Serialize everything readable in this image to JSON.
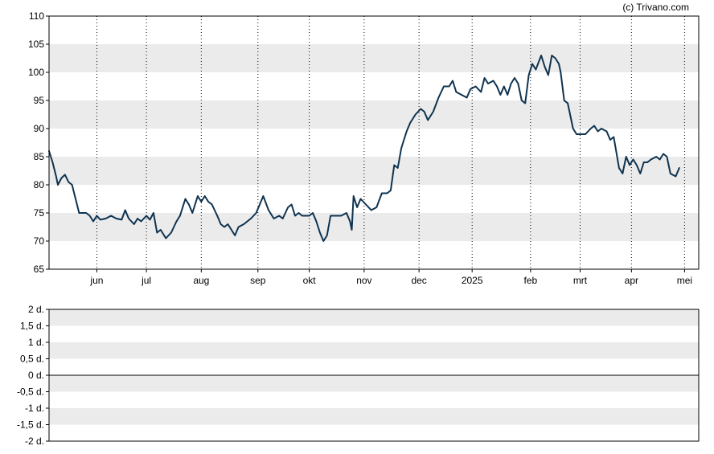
{
  "credit": "(c) Trivano.com",
  "colors": {
    "line": "#0e3350",
    "band": "#ebebeb",
    "frame": "#000000",
    "grid": "#000000"
  },
  "chart_data": [
    {
      "type": "line",
      "title": "",
      "xlabel": "",
      "ylabel": "",
      "ylim": [
        65,
        110
      ],
      "yticks": [
        "65",
        "70",
        "75",
        "80",
        "85",
        "90",
        "95",
        "100",
        "105",
        "110"
      ],
      "xticks": [
        "jun",
        "jul",
        "aug",
        "sep",
        "okt",
        "nov",
        "dec",
        "2025",
        "feb",
        "mrt",
        "apr",
        "mei"
      ],
      "x_range": [
        "2024-05-07",
        "2025-05-09"
      ],
      "xtick_dates": [
        "2024-06-03",
        "2024-07-01",
        "2024-08-01",
        "2024-09-02",
        "2024-10-01",
        "2024-11-01",
        "2024-12-02",
        "2025-01-01",
        "2025-02-03",
        "2025-03-03",
        "2025-04-01",
        "2025-05-01"
      ],
      "grid": "vertical dotted at month ticks; alternating horizontal bands",
      "series": [
        {
          "points": [
            [
              "2024-05-07",
              86.0
            ],
            [
              "2024-05-09",
              84.0
            ],
            [
              "2024-05-11",
              81.5
            ],
            [
              "2024-05-12",
              80.0
            ],
            [
              "2024-05-14",
              81.2
            ],
            [
              "2024-05-16",
              81.8
            ],
            [
              "2024-05-18",
              80.5
            ],
            [
              "2024-05-20",
              80.0
            ],
            [
              "2024-05-22",
              77.5
            ],
            [
              "2024-05-24",
              75.0
            ],
            [
              "2024-05-28",
              75.0
            ],
            [
              "2024-05-30",
              74.5
            ],
            [
              "2024-06-01",
              73.5
            ],
            [
              "2024-06-03",
              74.5
            ],
            [
              "2024-06-05",
              73.8
            ],
            [
              "2024-06-08",
              74.0
            ],
            [
              "2024-06-11",
              74.5
            ],
            [
              "2024-06-14",
              74.0
            ],
            [
              "2024-06-17",
              73.8
            ],
            [
              "2024-06-19",
              75.5
            ],
            [
              "2024-06-21",
              74.0
            ],
            [
              "2024-06-24",
              73.0
            ],
            [
              "2024-06-26",
              74.0
            ],
            [
              "2024-06-28",
              73.5
            ],
            [
              "2024-07-01",
              74.5
            ],
            [
              "2024-07-03",
              73.8
            ],
            [
              "2024-07-05",
              75.0
            ],
            [
              "2024-07-07",
              71.5
            ],
            [
              "2024-07-09",
              72.0
            ],
            [
              "2024-07-12",
              70.5
            ],
            [
              "2024-07-15",
              71.5
            ],
            [
              "2024-07-18",
              73.5
            ],
            [
              "2024-07-20",
              74.5
            ],
            [
              "2024-07-23",
              77.5
            ],
            [
              "2024-07-25",
              76.5
            ],
            [
              "2024-07-27",
              75.0
            ],
            [
              "2024-07-30",
              78.0
            ],
            [
              "2024-08-01",
              77.0
            ],
            [
              "2024-08-03",
              78.0
            ],
            [
              "2024-08-05",
              77.0
            ],
            [
              "2024-08-07",
              76.5
            ],
            [
              "2024-08-10",
              74.5
            ],
            [
              "2024-08-12",
              73.0
            ],
            [
              "2024-08-14",
              72.5
            ],
            [
              "2024-08-16",
              73.0
            ],
            [
              "2024-08-18",
              72.0
            ],
            [
              "2024-08-20",
              71.0
            ],
            [
              "2024-08-22",
              72.5
            ],
            [
              "2024-08-25",
              73.0
            ],
            [
              "2024-08-27",
              73.5
            ],
            [
              "2024-08-29",
              74.0
            ],
            [
              "2024-09-01",
              75.0
            ],
            [
              "2024-09-03",
              76.5
            ],
            [
              "2024-09-05",
              78.0
            ],
            [
              "2024-09-08",
              75.5
            ],
            [
              "2024-09-11",
              74.0
            ],
            [
              "2024-09-14",
              74.5
            ],
            [
              "2024-09-16",
              74.0
            ],
            [
              "2024-09-19",
              76.0
            ],
            [
              "2024-09-21",
              76.5
            ],
            [
              "2024-09-23",
              74.5
            ],
            [
              "2024-09-25",
              75.0
            ],
            [
              "2024-09-27",
              74.5
            ],
            [
              "2024-10-01",
              74.5
            ],
            [
              "2024-10-03",
              75.0
            ],
            [
              "2024-10-05",
              73.5
            ],
            [
              "2024-10-07",
              71.5
            ],
            [
              "2024-10-09",
              70.0
            ],
            [
              "2024-10-11",
              71.0
            ],
            [
              "2024-10-13",
              74.5
            ],
            [
              "2024-10-16",
              74.5
            ],
            [
              "2024-10-19",
              74.5
            ],
            [
              "2024-10-22",
              75.0
            ],
            [
              "2024-10-24",
              73.5
            ],
            [
              "2024-10-25",
              72.0
            ],
            [
              "2024-10-26",
              78.0
            ],
            [
              "2024-10-28",
              76.0
            ],
            [
              "2024-10-30",
              77.5
            ],
            [
              "2024-11-02",
              76.5
            ],
            [
              "2024-11-05",
              75.5
            ],
            [
              "2024-11-08",
              76.0
            ],
            [
              "2024-11-11",
              78.5
            ],
            [
              "2024-11-14",
              78.5
            ],
            [
              "2024-11-16",
              79.0
            ],
            [
              "2024-11-18",
              83.5
            ],
            [
              "2024-11-20",
              83.0
            ],
            [
              "2024-11-22",
              86.5
            ],
            [
              "2024-11-25",
              89.5
            ],
            [
              "2024-11-27",
              91.0
            ],
            [
              "2024-11-30",
              92.5
            ],
            [
              "2024-12-03",
              93.5
            ],
            [
              "2024-12-05",
              93.0
            ],
            [
              "2024-12-07",
              91.5
            ],
            [
              "2024-12-10",
              93.0
            ],
            [
              "2024-12-13",
              95.5
            ],
            [
              "2024-12-16",
              97.5
            ],
            [
              "2024-12-19",
              97.5
            ],
            [
              "2024-12-21",
              98.5
            ],
            [
              "2024-12-23",
              96.5
            ],
            [
              "2024-12-26",
              96.0
            ],
            [
              "2024-12-29",
              95.5
            ],
            [
              "2024-12-31",
              97.0
            ],
            [
              "2025-01-03",
              97.5
            ],
            [
              "2025-01-06",
              96.5
            ],
            [
              "2025-01-08",
              99.0
            ],
            [
              "2025-01-10",
              98.0
            ],
            [
              "2025-01-13",
              98.5
            ],
            [
              "2025-01-15",
              97.5
            ],
            [
              "2025-01-17",
              96.0
            ],
            [
              "2025-01-19",
              97.5
            ],
            [
              "2025-01-21",
              96.0
            ],
            [
              "2025-01-23",
              98.0
            ],
            [
              "2025-01-25",
              99.0
            ],
            [
              "2025-01-27",
              98.0
            ],
            [
              "2025-01-29",
              95.0
            ],
            [
              "2025-01-31",
              94.5
            ],
            [
              "2025-02-02",
              99.5
            ],
            [
              "2025-02-04",
              101.5
            ],
            [
              "2025-02-06",
              100.5
            ],
            [
              "2025-02-09",
              103.0
            ],
            [
              "2025-02-11",
              101.0
            ],
            [
              "2025-02-13",
              99.5
            ],
            [
              "2025-02-15",
              103.0
            ],
            [
              "2025-02-17",
              102.5
            ],
            [
              "2025-02-19",
              101.5
            ],
            [
              "2025-02-20",
              100.0
            ],
            [
              "2025-02-22",
              95.0
            ],
            [
              "2025-02-24",
              94.5
            ],
            [
              "2025-02-27",
              90.0
            ],
            [
              "2025-03-01",
              89.0
            ],
            [
              "2025-03-03",
              89.0
            ],
            [
              "2025-03-06",
              89.0
            ],
            [
              "2025-03-09",
              90.0
            ],
            [
              "2025-03-11",
              90.5
            ],
            [
              "2025-03-13",
              89.5
            ],
            [
              "2025-03-15",
              90.0
            ],
            [
              "2025-03-18",
              89.5
            ],
            [
              "2025-03-20",
              88.0
            ],
            [
              "2025-03-22",
              88.5
            ],
            [
              "2025-03-25",
              83.0
            ],
            [
              "2025-03-27",
              82.0
            ],
            [
              "2025-03-29",
              85.0
            ],
            [
              "2025-03-31",
              83.5
            ],
            [
              "2025-04-02",
              84.5
            ],
            [
              "2025-04-04",
              83.5
            ],
            [
              "2025-04-06",
              82.0
            ],
            [
              "2025-04-08",
              84.0
            ],
            [
              "2025-04-10",
              84.0
            ],
            [
              "2025-04-12",
              84.5
            ],
            [
              "2025-04-15",
              85.0
            ],
            [
              "2025-04-17",
              84.5
            ],
            [
              "2025-04-19",
              85.5
            ],
            [
              "2025-04-21",
              85.0
            ],
            [
              "2025-04-23",
              82.0
            ],
            [
              "2025-04-26",
              81.5
            ],
            [
              "2025-04-28",
              83.0
            ]
          ]
        }
      ]
    },
    {
      "type": "line",
      "title": "",
      "xlabel": "",
      "ylabel": "",
      "ylim": [
        -2,
        2
      ],
      "yticks": [
        "2 d.",
        "1,5 d.",
        "1 d.",
        "0,5 d.",
        "0 d.",
        "-0,5 d.",
        "-1 d.",
        "-1,5 d.",
        "-2 d."
      ],
      "grid": "alternating horizontal bands; solid zero line",
      "series": []
    }
  ]
}
